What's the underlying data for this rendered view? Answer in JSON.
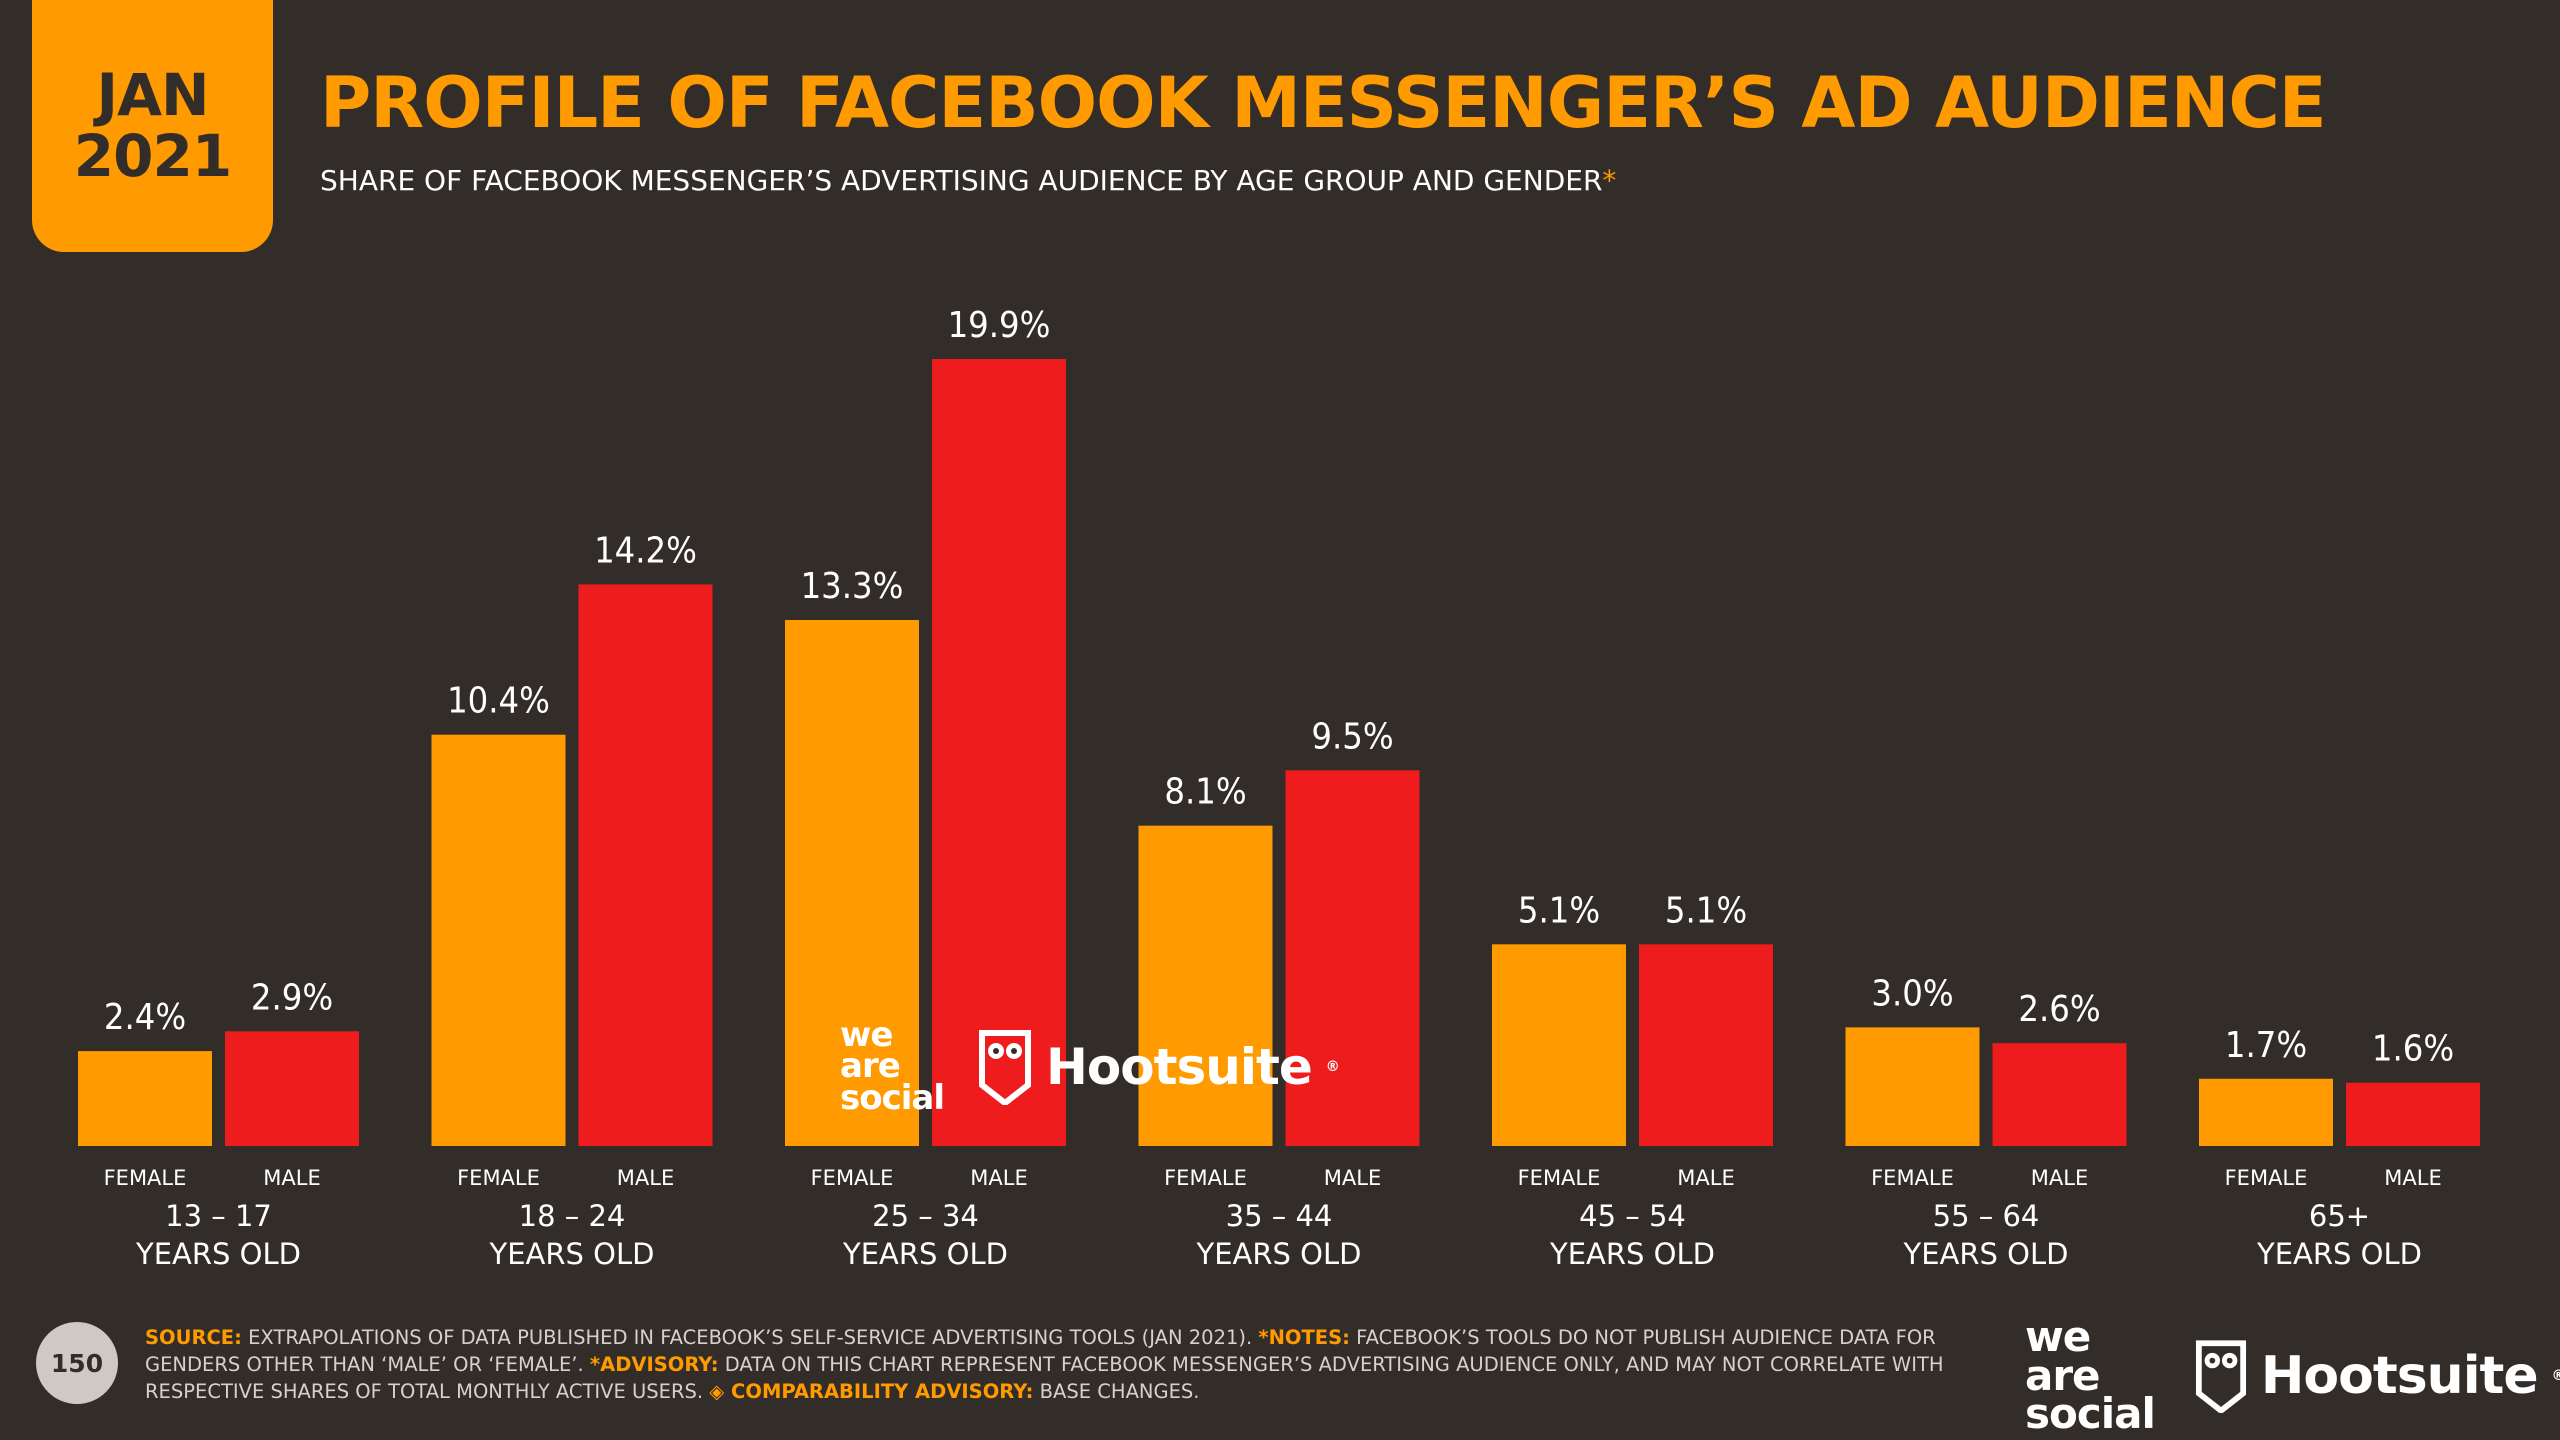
{
  "badge": {
    "line1": "JAN",
    "line2": "2021"
  },
  "header": {
    "title": "PROFILE OF FACEBOOK MESSENGER’S AD AUDIENCE",
    "subtitle": "SHARE OF FACEBOOK MESSENGER’S ADVERTISING AUDIENCE BY AGE GROUP AND GENDER",
    "subtitle_mark": "*"
  },
  "colors": {
    "female": "#ff9a00",
    "male": "#ee1c1c",
    "background": "#332d2a",
    "accent": "#ff9a00"
  },
  "chart_data": {
    "type": "bar",
    "categories": [
      "13 – 17|YEARS OLD",
      "18 – 24|YEARS OLD",
      "25 – 34|YEARS OLD",
      "35 – 44|YEARS OLD",
      "45 – 54|YEARS OLD",
      "55 – 64|YEARS OLD",
      "65+|YEARS OLD"
    ],
    "series": [
      {
        "name": "FEMALE",
        "values": [
          2.4,
          10.4,
          13.3,
          8.1,
          5.1,
          3.0,
          1.7
        ]
      },
      {
        "name": "MALE",
        "values": [
          2.9,
          14.2,
          19.9,
          9.5,
          5.1,
          2.6,
          1.6
        ]
      }
    ],
    "value_labels": [
      [
        "2.4%",
        "10.4%",
        "13.3%",
        "8.1%",
        "5.1%",
        "3.0%",
        "1.7%"
      ],
      [
        "2.9%",
        "14.2%",
        "19.9%",
        "9.5%",
        "5.1%",
        "2.6%",
        "1.6%"
      ]
    ],
    "unit": "%",
    "ylim": [
      0,
      19.9
    ],
    "grid": false,
    "legend": "none"
  },
  "watermark": {
    "brand1": "we\nare\nsocial",
    "brand2": "Hootsuite",
    "reg": "®"
  },
  "footer": {
    "page_number": "150",
    "source_label": "SOURCE:",
    "source_text": " EXTRAPOLATIONS OF DATA PUBLISHED IN FACEBOOK’S SELF-SERVICE ADVERTISING TOOLS (JAN 2021). ",
    "notes_label": "*NOTES:",
    "notes_text": " FACEBOOK’S TOOLS DO NOT PUBLISH AUDIENCE DATA FOR GENDERS OTHER THAN ‘MALE’ OR ‘FEMALE’. ",
    "advisory_label": "*ADVISORY:",
    "advisory_text": " DATA ON THIS CHART REPRESENT FACEBOOK MESSENGER’S ADVERTISING AUDIENCE ONLY, AND MAY NOT CORRELATE WITH RESPECTIVE SHARES OF TOTAL MONTHLY ACTIVE USERS. ",
    "comparability_label": "◈ COMPARABILITY ADVISORY:",
    "comparability_text": " BASE CHANGES."
  }
}
